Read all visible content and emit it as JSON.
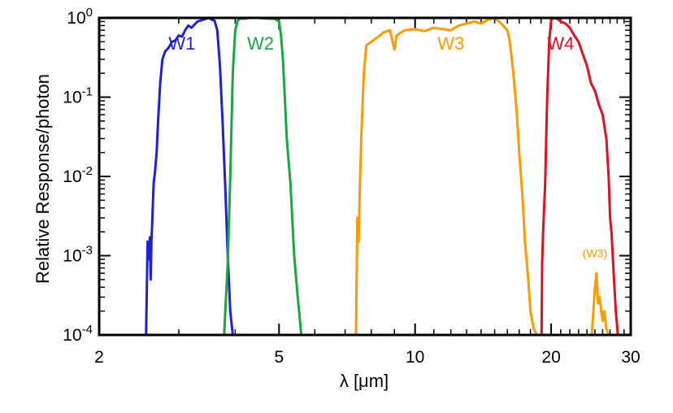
{
  "chart_data": {
    "type": "line",
    "title": "",
    "xlabel": "λ [μm]",
    "ylabel": "Relative Response/photon",
    "x_scale": "log",
    "y_scale": "log",
    "xlim": [
      2,
      30
    ],
    "ylim": [
      0.0001,
      1
    ],
    "x_ticks": [
      {
        "value": 2,
        "label": "2"
      },
      {
        "value": 5,
        "label": "5"
      },
      {
        "value": 10,
        "label": "10"
      },
      {
        "value": 20,
        "label": "20"
      },
      {
        "value": 30,
        "label": "30"
      }
    ],
    "y_ticks": [
      {
        "value": 1,
        "base": "10",
        "exp": "0"
      },
      {
        "value": 0.1,
        "base": "10",
        "exp": "-1"
      },
      {
        "value": 0.01,
        "base": "10",
        "exp": "-2"
      },
      {
        "value": 0.001,
        "base": "10",
        "exp": "-3"
      },
      {
        "value": 0.0001,
        "base": "10",
        "exp": "-4"
      }
    ],
    "grid": false,
    "series": [
      {
        "name": "W1",
        "color": "#1f1fdc",
        "x": [
          2.54,
          2.56,
          2.57,
          2.59,
          2.6,
          2.61,
          2.62,
          2.64,
          2.66,
          2.68,
          2.7,
          2.73,
          2.76,
          2.8,
          2.85,
          2.9,
          2.95,
          3.0,
          3.05,
          3.1,
          3.15,
          3.2,
          3.3,
          3.4,
          3.5,
          3.55,
          3.6,
          3.65,
          3.7,
          3.75,
          3.8,
          3.85,
          3.9,
          3.95
        ],
        "y": [
          0.0001,
          0.0015,
          0.0009,
          0.0017,
          0.0005,
          0.0015,
          0.0025,
          0.008,
          0.012,
          0.02,
          0.05,
          0.15,
          0.3,
          0.38,
          0.42,
          0.5,
          0.52,
          0.6,
          0.58,
          0.7,
          0.8,
          0.75,
          0.9,
          0.95,
          1.0,
          0.95,
          0.92,
          0.7,
          0.25,
          0.05,
          0.008,
          0.001,
          0.0002,
          0.0001
        ]
      },
      {
        "name": "W2",
        "color": "#1aa640",
        "x": [
          3.78,
          3.85,
          3.9,
          3.95,
          4.0,
          4.05,
          4.1,
          4.2,
          4.3,
          4.5,
          4.7,
          4.9,
          5.0,
          5.05,
          5.1,
          5.15,
          5.2,
          5.3,
          5.4,
          5.5,
          5.6
        ],
        "y": [
          0.0001,
          0.0008,
          0.01,
          0.2,
          0.7,
          0.92,
          0.98,
          0.98,
          1.0,
          1.0,
          0.98,
          0.97,
          0.9,
          0.6,
          0.3,
          0.1,
          0.03,
          0.008,
          0.001,
          0.0003,
          0.0001
        ]
      },
      {
        "name": "W3",
        "color": "#ff9a00",
        "x": [
          7.4,
          7.45,
          7.5,
          7.55,
          7.6,
          7.7,
          7.8,
          8.0,
          8.2,
          8.5,
          8.8,
          9.0,
          9.1,
          9.3,
          9.5,
          10.0,
          10.5,
          11.0,
          11.5,
          12.0,
          12.5,
          13.0,
          13.5,
          14.0,
          14.5,
          15.0,
          15.5,
          16.0,
          16.2,
          16.5,
          16.8,
          17.0,
          17.3,
          17.5,
          17.8,
          18.0,
          18.3,
          18.6
        ],
        "y": [
          0.0001,
          0.003,
          0.0015,
          0.008,
          0.03,
          0.2,
          0.45,
          0.5,
          0.55,
          0.65,
          0.7,
          0.4,
          0.6,
          0.65,
          0.7,
          0.72,
          0.68,
          0.75,
          0.72,
          0.7,
          0.8,
          0.85,
          0.9,
          0.85,
          0.95,
          1.0,
          0.85,
          0.7,
          0.5,
          0.2,
          0.06,
          0.02,
          0.005,
          0.0015,
          0.0005,
          0.0002,
          0.00012,
          0.0001
        ]
      },
      {
        "name": "W4",
        "color": "#e01020",
        "x": [
          19.05,
          19.1,
          19.2,
          19.4,
          19.6,
          19.8,
          20.0,
          20.3,
          20.6,
          21.0,
          21.5,
          22.0,
          22.5,
          23.0,
          23.5,
          24.0,
          24.5,
          25.0,
          25.5,
          26.0,
          26.5,
          26.8,
          27.0,
          27.2,
          27.5,
          27.8,
          28.1
        ],
        "y": [
          0.0001,
          0.0008,
          0.002,
          0.008,
          0.1,
          0.5,
          0.95,
          1.0,
          0.98,
          0.9,
          0.85,
          0.75,
          0.6,
          0.5,
          0.35,
          0.25,
          0.15,
          0.12,
          0.08,
          0.06,
          0.03,
          0.01,
          0.003,
          0.002,
          0.0006,
          0.0002,
          0.0001
        ]
      },
      {
        "name": "(W3)",
        "color": "#ff9a00",
        "x": [
          24.6,
          24.8,
          25.0,
          25.2,
          25.4,
          25.6,
          25.8,
          26.0,
          26.2,
          26.5,
          26.8
        ],
        "y": [
          0.0001,
          0.0002,
          0.0004,
          0.0006,
          0.00025,
          0.0003,
          0.0002,
          0.00015,
          0.0002,
          0.00012,
          0.0001
        ]
      }
    ],
    "annotations": [
      {
        "text": "W1",
        "x": 3.05,
        "y": 0.4,
        "color": "#1f1fdc"
      },
      {
        "text": "W2",
        "x": 4.55,
        "y": 0.4,
        "color": "#1aa640"
      },
      {
        "text": "W3",
        "x": 12.0,
        "y": 0.4,
        "color": "#ff9a00"
      },
      {
        "text": "W4",
        "x": 21.0,
        "y": 0.4,
        "color": "#e01020"
      },
      {
        "text": "(W3)",
        "x": 25.0,
        "y": 0.00095,
        "color": "#ff9a00"
      }
    ]
  }
}
